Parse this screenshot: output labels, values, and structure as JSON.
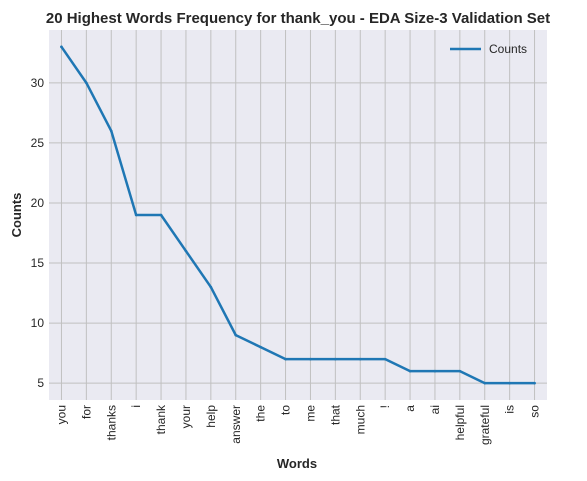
{
  "chart_data": {
    "type": "line",
    "title": "20 Highest Words Frequency for thank_you - EDA Size-3 Validation Set",
    "xlabel": "Words",
    "ylabel": "Counts",
    "categories": [
      "you",
      "for",
      "thanks",
      "i",
      "thank",
      "your",
      "help",
      "answer",
      "the",
      "to",
      "me",
      "that",
      "much",
      "!",
      "a",
      "ai",
      "helpful",
      "grateful",
      "is",
      "so"
    ],
    "series": [
      {
        "name": "Counts",
        "values": [
          33,
          30,
          26,
          19,
          19,
          16,
          13,
          9,
          8,
          7,
          7,
          7,
          7,
          7,
          6,
          6,
          6,
          5,
          5,
          5
        ],
        "color": "#1f77b4"
      }
    ],
    "ylim": [
      3.6,
      34.4
    ],
    "yticks": [
      5,
      10,
      15,
      20,
      25,
      30
    ],
    "grid": true,
    "legend": "upper right",
    "background": "#eaeaf2",
    "grid_color": "#c0c0c0"
  }
}
